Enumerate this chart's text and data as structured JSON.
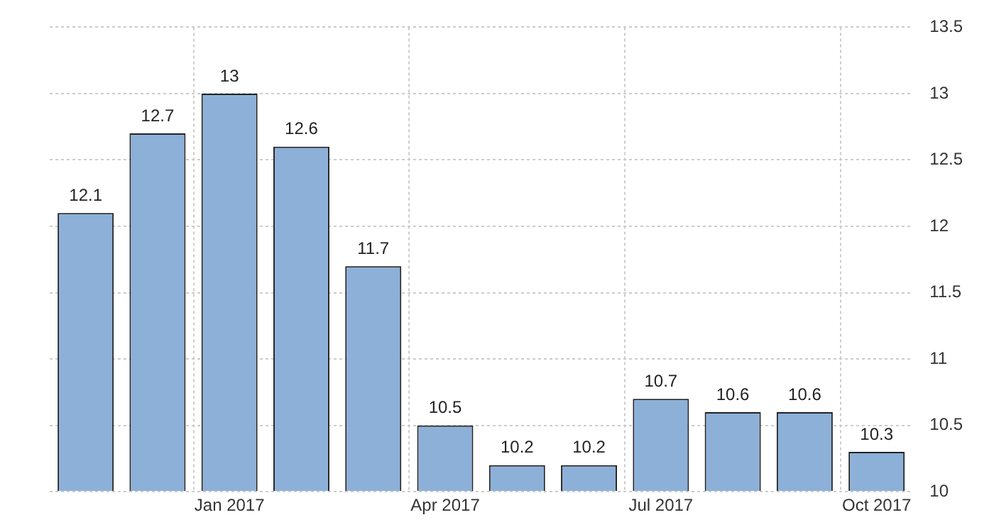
{
  "chart_data": {
    "type": "bar",
    "categories": [
      null,
      null,
      "Jan 2017",
      null,
      null,
      "Apr 2017",
      null,
      null,
      "Jul 2017",
      null,
      null,
      "Oct 2017"
    ],
    "values": [
      12.1,
      12.7,
      13,
      12.6,
      11.7,
      10.5,
      10.2,
      10.2,
      10.7,
      10.6,
      10.6,
      10.3
    ],
    "color": "#8cb0d8",
    "ylim": [
      10,
      13.5
    ],
    "yticks": [
      10,
      10.5,
      11,
      11.5,
      12,
      12.5,
      13,
      13.5
    ],
    "grid": true,
    "data_labels": true,
    "legend": false
  }
}
